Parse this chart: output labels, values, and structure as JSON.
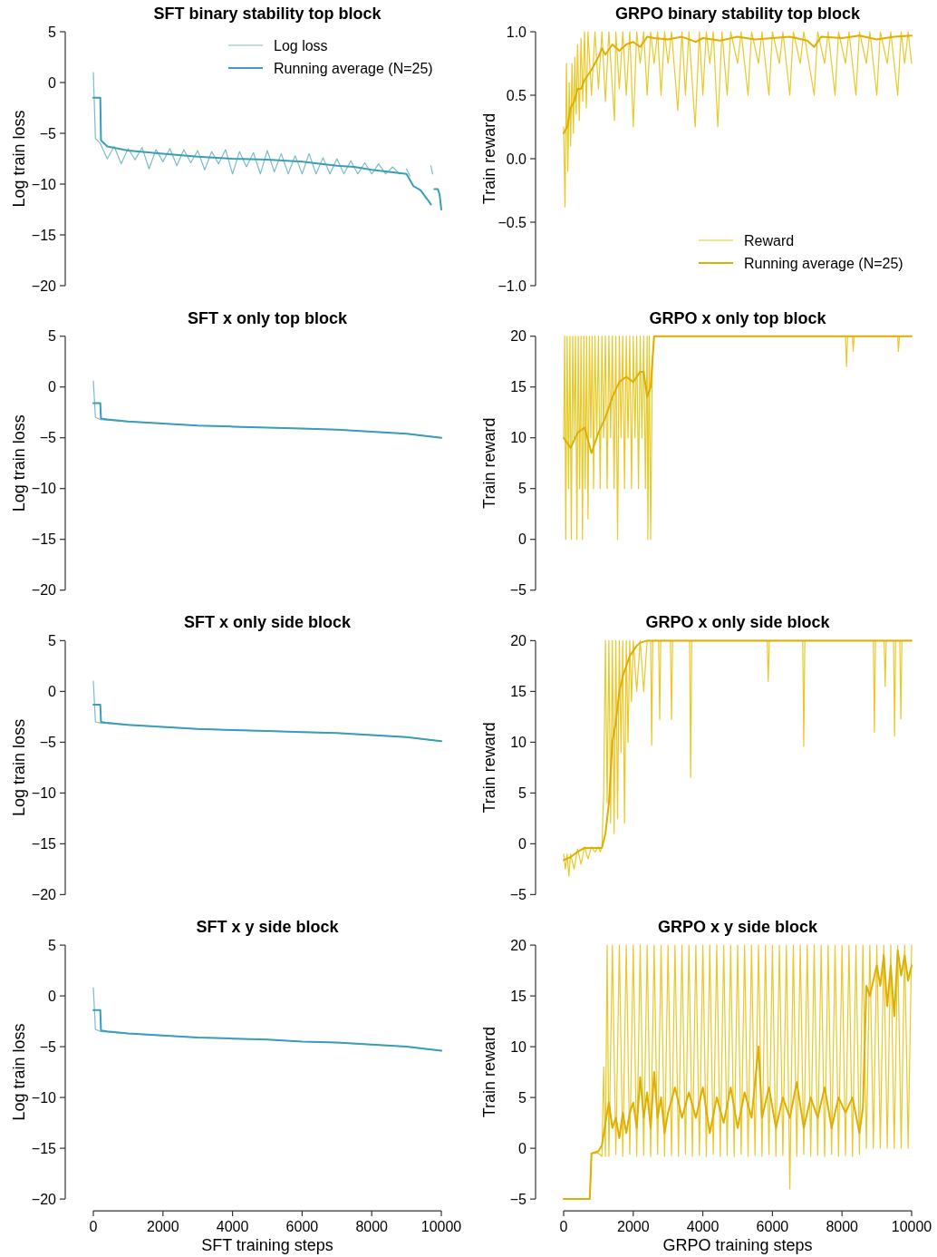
{
  "chart_data": [
    {
      "type": "line",
      "title": "SFT binary stability top block",
      "ylabel": "Log train loss",
      "xlim": [
        0,
        10000
      ],
      "ylim": [
        -20,
        5
      ],
      "yticks": [
        {
          "value": -20,
          "label": "−20"
        },
        {
          "value": -15,
          "label": "−15"
        },
        {
          "value": -10,
          "label": "−10"
        },
        {
          "value": -5,
          "label": "−5"
        },
        0,
        5
      ],
      "tick_labels": "y",
      "legend": "top right",
      "series": [
        {
          "name": "Log loss",
          "color": "#7bbccb",
          "x": [
            0,
            60,
            200,
            400,
            600,
            800,
            1000,
            1200,
            1400,
            1600,
            1800,
            2000,
            2200,
            2400,
            2600,
            2800,
            3000,
            3200,
            3400,
            3600,
            3800,
            4000,
            4200,
            4400,
            4600,
            4800,
            5000,
            5200,
            5400,
            5600,
            5800,
            6000,
            6200,
            6400,
            6600,
            6800,
            7000,
            7200,
            7400,
            7600,
            7800,
            8000,
            8200,
            8400,
            8600,
            8800,
            8900,
            9000,
            9100,
            9200,
            9700,
            9750
          ],
          "values": [
            1.0,
            -5.5,
            -6.0,
            -7.5,
            -6.3,
            -8.0,
            -6.5,
            -7.6,
            -6.4,
            -8.5,
            -6.6,
            -7.8,
            -6.5,
            -8.2,
            -6.6,
            -7.9,
            -6.7,
            -8.6,
            -6.8,
            -8.0,
            -6.6,
            -9.0,
            -6.8,
            -8.3,
            -6.9,
            -9.0,
            -6.7,
            -8.8,
            -7.0,
            -9.0,
            -7.2,
            -9.0,
            -7.0,
            -9.0,
            -7.4,
            -9.0,
            -7.5,
            -9.0,
            -7.7,
            -9.0,
            -7.9,
            -9.0,
            -8.0,
            -9.0,
            -8.3,
            -9.0,
            null,
            -8.5,
            -9.2,
            null,
            -8.2,
            -9.0
          ]
        },
        {
          "name": "Running average (N=25)",
          "color": "#3c9db8",
          "x": [
            0,
            200,
            220,
            400,
            1000,
            2000,
            3000,
            4000,
            5000,
            6000,
            6500,
            7000,
            7500,
            8000,
            8500,
            9000,
            9200,
            9400,
            9600,
            9700,
            9750,
            9800,
            9900,
            9950,
            10000
          ],
          "values": [
            -1.5,
            -1.5,
            -5.7,
            -6.3,
            -6.7,
            -7.0,
            -7.3,
            -7.5,
            -7.6,
            -7.8,
            -8.0,
            -8.2,
            -8.3,
            -8.6,
            -8.8,
            -9.0,
            -10.2,
            -10.6,
            -11.5,
            -12.0,
            null,
            -10.5,
            -10.5,
            -11.0,
            -12.5
          ]
        }
      ]
    },
    {
      "type": "line",
      "title": "GRPO binary stability top block",
      "ylabel": "Train reward",
      "xlim": [
        0,
        10000
      ],
      "ylim": [
        -1,
        1
      ],
      "yticks": [
        {
          "value": -1,
          "label": "−1.0"
        },
        {
          "value": -0.5,
          "label": "−0.5"
        },
        {
          "value": 0,
          "label": "0.0"
        },
        {
          "value": 0.5,
          "label": "0.5"
        },
        {
          "value": 1,
          "label": "1.0"
        }
      ],
      "tick_labels": "y",
      "legend": "bottom right",
      "series": [
        {
          "name": "Reward",
          "color": "#e8c92a",
          "x": [
            0,
            40,
            80,
            120,
            160,
            200,
            240,
            280,
            320,
            360,
            400,
            450,
            500,
            550,
            600,
            650,
            700,
            800,
            900,
            1000,
            1100,
            1200,
            1300,
            1460,
            1500,
            1600,
            1700,
            1800,
            1900,
            2000,
            2100,
            2200,
            2300,
            2400,
            2500,
            2600,
            2700,
            2800,
            2900,
            3000,
            3100,
            3280,
            3400,
            3500,
            3600,
            3780,
            3900,
            4000,
            4100,
            4200,
            4300,
            4430,
            4550,
            4700,
            4800,
            5000,
            5100,
            5300,
            5400,
            5600,
            5700,
            5900,
            6000,
            6200,
            6300,
            6500,
            6600,
            6800,
            6900,
            7200,
            7300,
            7500,
            7600,
            7800,
            7900,
            8100,
            8200,
            8400,
            8500,
            8700,
            8800,
            9000,
            9100,
            9300,
            9400,
            9600,
            9700,
            9800,
            9900,
            10000
          ],
          "values": [
            0.25,
            -0.38,
            0.75,
            -0.1,
            0.6,
            0.1,
            0.75,
            0.2,
            0.8,
            0.35,
            0.9,
            0.3,
            0.95,
            0.45,
            1.0,
            0.4,
            1.0,
            0.5,
            1.0,
            0.55,
            1.0,
            0.45,
            1.0,
            0.3,
            1.0,
            0.55,
            1.0,
            0.5,
            1.0,
            0.25,
            1.0,
            0.75,
            1.0,
            0.5,
            1.0,
            0.75,
            1.0,
            0.5,
            1.0,
            0.75,
            1.0,
            0.38,
            1.0,
            0.5,
            1.0,
            0.25,
            1.0,
            0.5,
            1.0,
            0.75,
            1.0,
            0.25,
            1.0,
            0.5,
            1.0,
            0.75,
            1.0,
            0.5,
            1.0,
            0.75,
            1.0,
            0.5,
            1.0,
            0.75,
            1.0,
            0.5,
            1.0,
            0.75,
            1.0,
            0.5,
            1.0,
            0.75,
            1.0,
            0.5,
            1.0,
            0.75,
            1.0,
            0.5,
            1.0,
            0.75,
            1.0,
            0.5,
            1.0,
            0.75,
            1.0,
            0.5,
            1.0,
            0.75,
            1.0,
            0.75
          ]
        },
        {
          "name": "Running average (N=25)",
          "color": "#e0ae00",
          "x": [
            0,
            100,
            200,
            300,
            400,
            500,
            600,
            800,
            1000,
            1100,
            1200,
            1400,
            1600,
            1800,
            2000,
            2200,
            2400,
            2600,
            3000,
            3400,
            3800,
            4000,
            4500,
            5000,
            5500,
            6000,
            6500,
            7000,
            7200,
            7400,
            8000,
            8500,
            9000,
            9500,
            10000
          ],
          "values": [
            0.2,
            0.25,
            0.4,
            0.45,
            0.55,
            0.55,
            0.62,
            0.7,
            0.8,
            0.87,
            0.82,
            0.9,
            0.85,
            0.9,
            0.92,
            0.88,
            0.96,
            0.95,
            0.94,
            0.96,
            0.92,
            0.95,
            0.93,
            0.96,
            0.94,
            0.95,
            0.96,
            0.93,
            0.88,
            0.96,
            0.95,
            0.97,
            0.94,
            0.96,
            0.97
          ]
        }
      ]
    },
    {
      "type": "line",
      "title": "SFT x only top block",
      "ylabel": "Log train loss",
      "xlim": [
        0,
        10000
      ],
      "ylim": [
        -20,
        5
      ],
      "yticks": [
        {
          "value": -20,
          "label": "−20"
        },
        {
          "value": -15,
          "label": "−15"
        },
        {
          "value": -10,
          "label": "−10"
        },
        {
          "value": -5,
          "label": "−5"
        },
        0,
        5
      ],
      "tick_labels": "y",
      "series": [
        {
          "color": "#7bbccb",
          "x": [
            0,
            60,
            200,
            1000,
            2000,
            3000,
            4000,
            5000,
            6000,
            7000,
            8000,
            9000,
            10000
          ],
          "values": [
            0.6,
            -3.0,
            -3.2,
            -3.4,
            -3.6,
            -3.8,
            -3.9,
            -4.0,
            -4.1,
            -4.2,
            -4.4,
            -4.6,
            -5.0
          ]
        },
        {
          "color": "#3c9db8",
          "x": [
            0,
            200,
            220,
            400,
            1000,
            2000,
            3000,
            4000,
            5000,
            6000,
            7000,
            8000,
            9000,
            10000
          ],
          "values": [
            -1.6,
            -1.6,
            -3.1,
            -3.2,
            -3.4,
            -3.6,
            -3.8,
            -3.9,
            -4.0,
            -4.1,
            -4.2,
            -4.4,
            -4.6,
            -5.0
          ]
        }
      ]
    },
    {
      "type": "line",
      "title": "GRPO x only top block",
      "ylabel": "Train reward",
      "xlim": [
        0,
        10000
      ],
      "ylim": [
        -5,
        20
      ],
      "yticks": [
        {
          "value": -5,
          "label": "−5"
        },
        0,
        5,
        10,
        15,
        20
      ],
      "tick_labels": "y",
      "series": [
        {
          "color": "#e8c92a",
          "x": [
            0,
            30,
            60,
            100,
            140,
            180,
            220,
            260,
            300,
            340,
            380,
            420,
            460,
            500,
            540,
            580,
            620,
            660,
            700,
            740,
            780,
            820,
            860,
            900,
            950,
            1000,
            1050,
            1100,
            1150,
            1200,
            1250,
            1300,
            1350,
            1400,
            1450,
            1500,
            1550,
            1600,
            1650,
            1700,
            1750,
            1800,
            1850,
            1900,
            1950,
            2000,
            2050,
            2100,
            2150,
            2200,
            2250,
            2300,
            2350,
            2400,
            2420,
            2460,
            2500,
            2550,
            2600,
            8100,
            8130,
            8160,
            8300,
            8320,
            8350,
            9600,
            9620,
            9650,
            10000
          ],
          "values": [
            10,
            20,
            0,
            20,
            5,
            20,
            0,
            20,
            10,
            20,
            0,
            20,
            5,
            20,
            0,
            20,
            5,
            20,
            2,
            20,
            10,
            20,
            5,
            20,
            10,
            20,
            5,
            20,
            10,
            20,
            5,
            20,
            10,
            20,
            5,
            20,
            0,
            20,
            10,
            20,
            5,
            20,
            10,
            20,
            5,
            20,
            10,
            20,
            5,
            20,
            10,
            20,
            5,
            20,
            0,
            20,
            0,
            17.5,
            20,
            20,
            17,
            20,
            20,
            18.5,
            20,
            20,
            18.5,
            20,
            20
          ]
        },
        {
          "color": "#e0ae00",
          "x": [
            0,
            200,
            400,
            600,
            800,
            1000,
            1200,
            1400,
            1600,
            1800,
            2000,
            2200,
            2300,
            2400,
            2500,
            2600,
            10000
          ],
          "values": [
            10,
            9,
            10.5,
            11,
            8.5,
            10.5,
            12,
            14,
            15.5,
            16,
            15.5,
            16.5,
            16.5,
            14,
            15,
            20,
            20
          ]
        }
      ]
    },
    {
      "type": "line",
      "title": "SFT x only side block",
      "ylabel": "Log train loss",
      "xlim": [
        0,
        10000
      ],
      "ylim": [
        -20,
        5
      ],
      "yticks": [
        {
          "value": -20,
          "label": "−20"
        },
        {
          "value": -15,
          "label": "−15"
        },
        {
          "value": -10,
          "label": "−10"
        },
        {
          "value": -5,
          "label": "−5"
        },
        0,
        5
      ],
      "tick_labels": "y",
      "series": [
        {
          "color": "#7bbccb",
          "x": [
            0,
            60,
            200,
            1000,
            2000,
            3000,
            4000,
            5000,
            6000,
            7000,
            8000,
            9000,
            10000
          ],
          "values": [
            1.0,
            -3.0,
            -3.1,
            -3.3,
            -3.5,
            -3.7,
            -3.8,
            -3.9,
            -4.0,
            -4.1,
            -4.3,
            -4.5,
            -4.9
          ]
        },
        {
          "color": "#3c9db8",
          "x": [
            0,
            200,
            220,
            400,
            1000,
            2000,
            3000,
            4000,
            5000,
            6000,
            7000,
            8000,
            9000,
            10000
          ],
          "values": [
            -1.3,
            -1.3,
            -3.0,
            -3.1,
            -3.3,
            -3.5,
            -3.7,
            -3.8,
            -3.9,
            -4.0,
            -4.1,
            -4.3,
            -4.5,
            -4.9
          ]
        }
      ]
    },
    {
      "type": "line",
      "title": "GRPO x only side block",
      "ylabel": "Train reward",
      "xlim": [
        0,
        10000
      ],
      "ylim": [
        -5,
        20
      ],
      "yticks": [
        {
          "value": -5,
          "label": "−5"
        },
        0,
        5,
        10,
        15,
        20
      ],
      "tick_labels": "y",
      "series": [
        {
          "color": "#e8c92a",
          "x": [
            0,
            50,
            100,
            150,
            200,
            300,
            400,
            500,
            600,
            700,
            800,
            900,
            1000,
            1050,
            1100,
            1150,
            1200,
            1250,
            1300,
            1350,
            1400,
            1450,
            1500,
            1550,
            1600,
            1650,
            1700,
            1750,
            1800,
            1850,
            1900,
            1950,
            2000,
            2100,
            2200,
            2300,
            2400,
            2500,
            2530,
            2560,
            2730,
            2760,
            2790,
            3070,
            3100,
            3130,
            3620,
            3650,
            3680,
            5850,
            5880,
            5910,
            6870,
            6900,
            6930,
            8900,
            8930,
            8960,
            9210,
            9240,
            9270,
            9480,
            9510,
            9540,
            9660,
            9690,
            9720,
            10000
          ],
          "values": [
            -1,
            -2.5,
            -1,
            -3.2,
            -1,
            -2.5,
            -0.5,
            -2,
            -0.3,
            -1.5,
            -0.3,
            -0.8,
            -0.3,
            -0.8,
            -0.3,
            5,
            20,
            4,
            20,
            2,
            20,
            1,
            20,
            2.5,
            20,
            9,
            20,
            2,
            20,
            10,
            20,
            14,
            20,
            15,
            20,
            15,
            20,
            20,
            9.7,
            20,
            20,
            12.2,
            20,
            20,
            12.2,
            20,
            20,
            6.5,
            20,
            20,
            16,
            20,
            20,
            9.6,
            20,
            20,
            11,
            20,
            20,
            15.5,
            20,
            20,
            10.6,
            20,
            20,
            12.3,
            20,
            20
          ]
        },
        {
          "color": "#e0ae00",
          "x": [
            0,
            200,
            400,
            600,
            1100,
            1200,
            1300,
            1400,
            1500,
            1600,
            1700,
            1800,
            1900,
            2000,
            2100,
            2200,
            2400,
            10000
          ],
          "values": [
            -1.6,
            -1.3,
            -0.8,
            -0.4,
            -0.4,
            1,
            4,
            10,
            12,
            15,
            16.5,
            17.5,
            18.5,
            19,
            19.5,
            19.8,
            20,
            20
          ]
        }
      ]
    },
    {
      "type": "line",
      "title": "SFT x y side block",
      "xlabel": "SFT training steps",
      "ylabel": "Log train loss",
      "xlim": [
        0,
        10000
      ],
      "xticks": [
        0,
        2000,
        4000,
        6000,
        8000,
        10000
      ],
      "ylim": [
        -20,
        5
      ],
      "yticks": [
        {
          "value": -20,
          "label": "−20"
        },
        {
          "value": -15,
          "label": "−15"
        },
        {
          "value": -10,
          "label": "−10"
        },
        {
          "value": -5,
          "label": "−5"
        },
        0,
        5
      ],
      "series": [
        {
          "color": "#7bbccb",
          "x": [
            0,
            60,
            200,
            1000,
            2000,
            3000,
            4000,
            5000,
            6000,
            7000,
            8000,
            9000,
            10000
          ],
          "values": [
            0.8,
            -3.3,
            -3.5,
            -3.7,
            -3.9,
            -4.1,
            -4.2,
            -4.3,
            -4.5,
            -4.6,
            -4.8,
            -5.0,
            -5.4
          ]
        },
        {
          "color": "#3c9db8",
          "x": [
            0,
            200,
            220,
            400,
            1000,
            2000,
            3000,
            4000,
            5000,
            6000,
            7000,
            8000,
            9000,
            10000
          ],
          "values": [
            -1.4,
            -1.4,
            -3.4,
            -3.5,
            -3.7,
            -3.9,
            -4.1,
            -4.2,
            -4.3,
            -4.5,
            -4.6,
            -4.8,
            -5.0,
            -5.4
          ]
        }
      ]
    },
    {
      "type": "line",
      "title": "GRPO x y side block",
      "xlabel": "GRPO training steps",
      "ylabel": "Train reward",
      "xlim": [
        0,
        10000
      ],
      "xticks": [
        0,
        2000,
        4000,
        6000,
        8000,
        10000
      ],
      "ylim": [
        -5,
        20
      ],
      "yticks": [
        {
          "value": -5,
          "label": "−5"
        },
        0,
        5,
        10,
        15,
        20
      ],
      "series": [
        {
          "color": "#e8c92a",
          "x": [
            0,
            750,
            800,
            1000,
            1100,
            1150,
            1200,
            1250,
            1300,
            1400,
            1500,
            1600,
            1700,
            1800,
            1900,
            2000,
            2100,
            2200,
            2300,
            2400,
            2500,
            2600,
            2700,
            2800,
            2900,
            3000,
            3100,
            3200,
            3300,
            3400,
            3500,
            3600,
            3700,
            3800,
            3900,
            4000,
            4100,
            4200,
            4300,
            4400,
            4500,
            4600,
            4700,
            4800,
            4900,
            5000,
            5100,
            5200,
            5300,
            5400,
            5500,
            5600,
            5700,
            5800,
            5900,
            6000,
            6100,
            6200,
            6300,
            6400,
            6500,
            6600,
            6700,
            6800,
            6900,
            7000,
            7100,
            7200,
            7300,
            7400,
            7500,
            7600,
            7700,
            7800,
            7900,
            8000,
            8100,
            8200,
            8300,
            8400,
            8500,
            8600,
            8700,
            8800,
            8900,
            9000,
            9100,
            9200,
            9300,
            9400,
            9500,
            9600,
            9700,
            9800,
            9900,
            10000
          ],
          "values": [
            -5,
            -5,
            -0.5,
            -0.5,
            -0.8,
            8,
            -0.8,
            20,
            -0.8,
            20,
            -0.6,
            20,
            -0.8,
            20,
            -0.6,
            20,
            -0.8,
            20,
            -0.7,
            20,
            -0.8,
            20,
            -0.6,
            20,
            -0.8,
            20,
            -0.7,
            20,
            -0.8,
            20,
            -0.6,
            20,
            -0.8,
            20,
            -0.7,
            20,
            -0.8,
            20,
            -0.6,
            20,
            -0.8,
            20,
            -0.7,
            20,
            -0.8,
            20,
            -0.6,
            20,
            -0.8,
            20,
            -0.7,
            20,
            -0.8,
            20,
            -0.6,
            20,
            -0.8,
            20,
            -0.7,
            20,
            -4,
            20,
            -0.8,
            20,
            -0.6,
            20,
            -0.8,
            20,
            -0.7,
            20,
            -0.8,
            20,
            -0.6,
            20,
            -0.8,
            20,
            -0.7,
            20,
            -0.8,
            20,
            -0.6,
            20,
            0,
            20,
            0,
            20,
            0,
            20,
            0,
            20,
            0,
            20,
            0,
            20,
            0,
            20
          ]
        },
        {
          "color": "#e0ae00",
          "x": [
            0,
            750,
            800,
            1000,
            1100,
            1200,
            1300,
            1400,
            1500,
            1600,
            1700,
            1800,
            1900,
            2000,
            2100,
            2200,
            2300,
            2400,
            2500,
            2600,
            2700,
            2800,
            2900,
            3000,
            3200,
            3400,
            3600,
            3800,
            4000,
            4200,
            4400,
            4600,
            4800,
            5000,
            5200,
            5400,
            5600,
            5700,
            5900,
            6100,
            6300,
            6500,
            6700,
            6900,
            7100,
            7300,
            7500,
            7700,
            7900,
            8100,
            8300,
            8500,
            8600,
            8700,
            8800,
            9000,
            9100,
            9200,
            9300,
            9400,
            9500,
            9600,
            9700,
            9800,
            9900,
            10000
          ],
          "values": [
            -5,
            -5,
            -0.5,
            -0.3,
            0.3,
            2.5,
            4.5,
            2,
            3,
            1,
            3.5,
            1.5,
            3.5,
            4.5,
            2,
            7,
            3,
            5.5,
            2,
            7.5,
            3,
            5,
            1.5,
            3.5,
            6,
            3,
            5.5,
            3,
            6,
            1.5,
            5,
            2.5,
            6,
            2,
            5.5,
            3,
            10,
            3,
            6,
            2,
            5,
            3,
            6.5,
            2,
            5,
            3,
            6,
            2,
            5,
            3.5,
            5,
            1.5,
            4,
            16,
            15,
            18,
            16,
            19,
            14,
            18,
            13,
            19.5,
            17,
            19,
            16.5,
            18
          ]
        }
      ]
    }
  ]
}
